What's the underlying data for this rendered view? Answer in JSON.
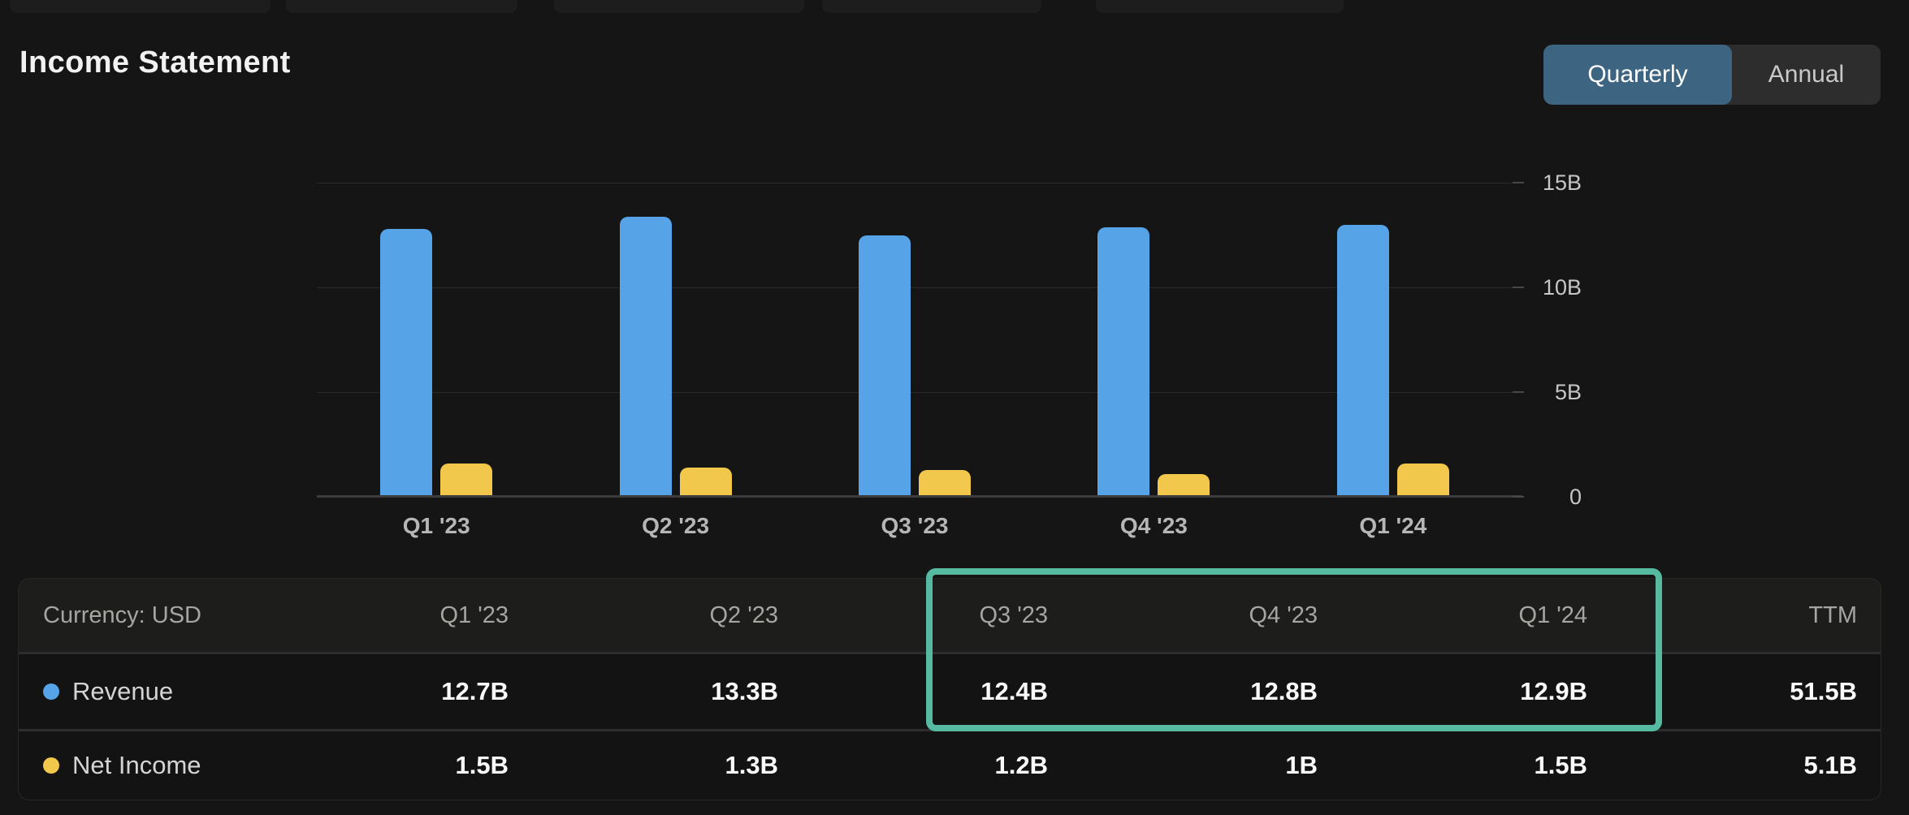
{
  "header": {
    "title": "Income Statement",
    "period_toggle": {
      "options": [
        "Quarterly",
        "Annual"
      ],
      "selected": "Quarterly",
      "active_color": "#3d6480"
    }
  },
  "top_tab_stubs": {
    "count": 5,
    "note": "unlabeled tabs cut off at top edge"
  },
  "chart_data": {
    "type": "bar",
    "title": "Income Statement",
    "categories": [
      "Q1 '23",
      "Q2 '23",
      "Q3 '23",
      "Q4 '23",
      "Q1 '24"
    ],
    "series": [
      {
        "name": "Revenue",
        "color": "#57a3e8",
        "values": [
          12.7,
          13.3,
          12.4,
          12.8,
          12.9
        ]
      },
      {
        "name": "Net Income",
        "color": "#f1c74c",
        "values": [
          1.5,
          1.3,
          1.2,
          1.0,
          1.5
        ]
      }
    ],
    "unit": "B",
    "xlabel": "",
    "ylabel": "",
    "ylim": [
      0,
      18
    ],
    "grid": true,
    "legend_position": "table-row-dots",
    "y_axis": {
      "side": "right",
      "ticks": [
        {
          "label": "15B",
          "value": 15
        },
        {
          "label": "10B",
          "value": 10
        },
        {
          "label": "5B",
          "value": 5
        },
        {
          "label": "0",
          "value": 0
        }
      ]
    }
  },
  "table": {
    "corner_label": "Currency: USD",
    "columns": [
      "Q1 '23",
      "Q2 '23",
      "Q3 '23",
      "Q4 '23",
      "Q1 '24",
      "TTM"
    ],
    "rows": [
      {
        "label": "Revenue",
        "dot_color": "#57a3e8",
        "values": [
          "12.7B",
          "13.3B",
          "12.4B",
          "12.8B",
          "12.9B",
          "51.5B"
        ]
      },
      {
        "label": "Net Income",
        "dot_color": "#f1c74c",
        "values": [
          "1.5B",
          "1.3B",
          "1.2B",
          "1B",
          "1.5B",
          "5.1B"
        ]
      }
    ],
    "highlight": {
      "color": "#55baa0",
      "columns": [
        "Q3 '23",
        "Q4 '23",
        "Q1 '24"
      ],
      "rows_covered": [
        "column headers",
        "Revenue"
      ]
    }
  }
}
